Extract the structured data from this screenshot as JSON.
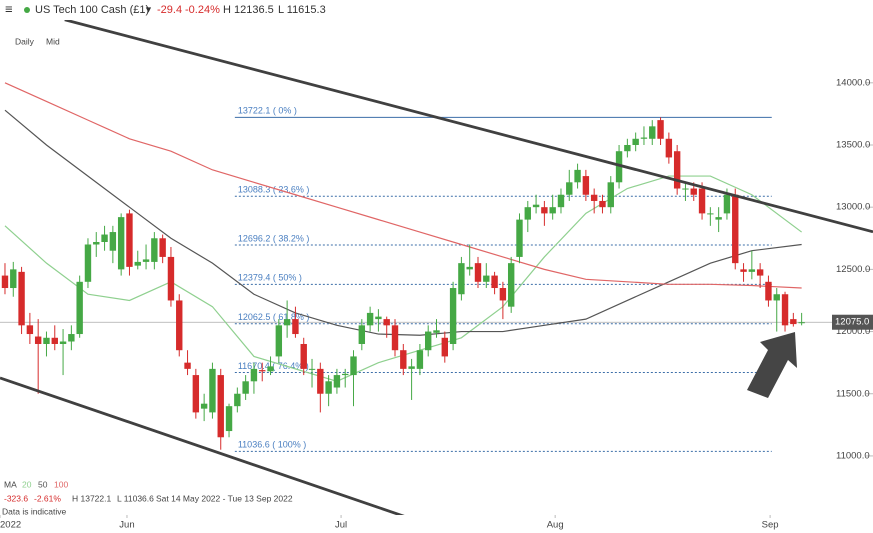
{
  "header": {
    "instrument": "US Tech 100 Cash (£1)",
    "change": "-29.4",
    "change_pct": "-0.24%",
    "high": "H 12136.5",
    "low": "L 11615.3",
    "interval": "Daily",
    "price_type": "Mid"
  },
  "footer": {
    "ma_label": "MA",
    "change": "-323.6",
    "change_pct": "-2.61%",
    "high": "H 13722.1",
    "low": "L 11036.6",
    "range": "Sat 14 May 2022 - Tue 13 Sep 2022",
    "note": "Data is indicative"
  },
  "chart_data": {
    "type": "candlestick",
    "xlim": [
      -0.6,
      104.6
    ],
    "ylim": [
      10525,
      14505
    ],
    "xticks": [
      {
        "value": -0.6,
        "label": "2022"
      },
      {
        "value": 14.7,
        "label": "Jun"
      },
      {
        "value": 40.5,
        "label": "Jul"
      },
      {
        "value": 66.3,
        "label": "Aug"
      },
      {
        "value": 92.2,
        "label": "Sep"
      }
    ],
    "yticks": [
      {
        "value": 11000,
        "label": "11000.0"
      },
      {
        "value": 11500,
        "label": "11500.0"
      },
      {
        "value": 12000,
        "label": "12000.0"
      },
      {
        "value": 12500,
        "label": "12500.0"
      },
      {
        "value": 13000,
        "label": "13000.0"
      },
      {
        "value": 13500,
        "label": "13500.0"
      },
      {
        "value": 14000,
        "label": "14000.0"
      }
    ],
    "up_color": "#45a845",
    "down_color": "#d62b2b",
    "candles": {
      "open": [
        12450,
        12350,
        12480,
        12050,
        11960,
        11900,
        11950,
        11900,
        11920,
        11980,
        12400,
        12700,
        12720,
        12650,
        12500,
        12950,
        12530,
        12560,
        12560,
        12750,
        12600,
        12250,
        11750,
        11650,
        11380,
        11350,
        11650,
        11200,
        11400,
        11500,
        11600,
        11690,
        11680,
        11800,
        12050,
        12100,
        11900,
        11700,
        11700,
        11500,
        11550,
        11650,
        11650,
        11900,
        12050,
        12100,
        12100,
        12050,
        11850,
        11700,
        11700,
        11850,
        11990,
        11950,
        11900,
        12300,
        12500,
        12550,
        12400,
        12450,
        12350,
        12200,
        12600,
        12900,
        13000,
        13000,
        12950,
        13000,
        13100,
        13200,
        13250,
        13100,
        13050,
        13000,
        13200,
        13450,
        13500,
        13550,
        13550,
        13700,
        13550,
        13450,
        13150,
        13150,
        13150,
        12950,
        12900,
        12950,
        13100,
        12500,
        12480,
        12500,
        12400,
        12250,
        12300,
        12100,
        12070
      ],
      "high": [
        12550,
        12560,
        12520,
        12150,
        12100,
        12000,
        12050,
        12020,
        12050,
        12450,
        12750,
        12800,
        12850,
        12850,
        12950,
        12980,
        12650,
        12700,
        12800,
        12780,
        12680,
        12300,
        11850,
        11700,
        11500,
        11750,
        11700,
        11420,
        11550,
        11650,
        11750,
        11750,
        11800,
        12100,
        12250,
        12200,
        11950,
        11780,
        11750,
        11650,
        11700,
        11700,
        11850,
        12100,
        12200,
        12180,
        12120,
        12100,
        11900,
        11780,
        11900,
        12050,
        12100,
        12000,
        12400,
        12600,
        12700,
        12600,
        12550,
        12480,
        12400,
        12600,
        12950,
        13050,
        13100,
        13050,
        13100,
        13150,
        13300,
        13350,
        13300,
        13150,
        13100,
        13250,
        13500,
        13550,
        13600,
        13650,
        13700,
        13722,
        13600,
        13500,
        13200,
        13200,
        13200,
        13000,
        13000,
        13150,
        13150,
        12550,
        12650,
        12550,
        12450,
        12350,
        12320,
        12150,
        12150
      ],
      "low": [
        12300,
        12280,
        11980,
        11900,
        11500,
        11800,
        11850,
        11650,
        11850,
        11950,
        12350,
        12600,
        12650,
        12550,
        12450,
        12450,
        12500,
        12500,
        12500,
        12550,
        12200,
        11800,
        11650,
        11300,
        11280,
        11300,
        11050,
        11150,
        11350,
        11450,
        11500,
        11600,
        11650,
        11750,
        11950,
        11950,
        11650,
        11550,
        11350,
        11400,
        11500,
        11550,
        11400,
        11850,
        12000,
        12000,
        11950,
        11800,
        11650,
        11450,
        11650,
        11800,
        11950,
        11750,
        11850,
        12250,
        12450,
        12350,
        12350,
        12300,
        12100,
        12150,
        12550,
        12800,
        12950,
        12850,
        12900,
        12950,
        13050,
        13150,
        13050,
        12950,
        12950,
        12950,
        13150,
        13400,
        13450,
        13500,
        13500,
        13500,
        13350,
        13100,
        13050,
        13050,
        12900,
        12850,
        12800,
        12900,
        12500,
        12400,
        12420,
        12350,
        12200,
        12000,
        12000,
        12040,
        12050
      ],
      "close": [
        12350,
        12500,
        12050,
        11980,
        11900,
        11950,
        11900,
        11920,
        11980,
        12400,
        12700,
        12720,
        12780,
        12800,
        12920,
        12520,
        12560,
        12580,
        12750,
        12600,
        12250,
        11850,
        11700,
        11350,
        11420,
        11700,
        11150,
        11400,
        11500,
        11600,
        11700,
        11680,
        11720,
        12050,
        12100,
        11980,
        11700,
        11700,
        11500,
        11600,
        11650,
        11660,
        11800,
        12050,
        12150,
        12120,
        12050,
        11850,
        11700,
        11720,
        11850,
        12000,
        12010,
        11800,
        12350,
        12550,
        12520,
        12400,
        12450,
        12350,
        12250,
        12550,
        12900,
        13000,
        13020,
        12950,
        13000,
        13100,
        13200,
        13300,
        13100,
        13050,
        13000,
        13200,
        13450,
        13500,
        13550,
        13560,
        13650,
        13550,
        13400,
        13150,
        13150,
        13100,
        12950,
        12950,
        12920,
        13100,
        12550,
        12480,
        12500,
        12450,
        12250,
        12300,
        12050,
        12060,
        12075
      ]
    },
    "series": [
      {
        "name": "20",
        "color": "#8fd08f",
        "x": [
          0,
          5,
          10,
          15,
          20,
          25,
          30,
          35,
          40,
          45,
          50,
          55,
          60,
          65,
          70,
          75,
          80,
          85,
          90,
          96
        ],
        "values": [
          12850,
          12550,
          12300,
          12250,
          12400,
          12200,
          11800,
          11700,
          11600,
          11750,
          11850,
          11950,
          12200,
          12600,
          12950,
          13150,
          13250,
          13250,
          13100,
          12800
        ]
      },
      {
        "name": "50",
        "color": "#555555",
        "x": [
          0,
          5,
          10,
          15,
          20,
          25,
          30,
          35,
          40,
          45,
          50,
          55,
          60,
          65,
          70,
          75,
          80,
          85,
          90,
          96
        ],
        "values": [
          13780,
          13500,
          13250,
          13000,
          12750,
          12550,
          12300,
          12150,
          12050,
          11980,
          11970,
          12000,
          12000,
          12050,
          12100,
          12250,
          12400,
          12550,
          12650,
          12700
        ]
      },
      {
        "name": "100",
        "color": "#e06666",
        "x": [
          0,
          5,
          10,
          15,
          20,
          25,
          30,
          35,
          40,
          45,
          50,
          55,
          60,
          65,
          70,
          75,
          80,
          85,
          90,
          96
        ],
        "values": [
          14000,
          13850,
          13700,
          13550,
          13450,
          13300,
          13200,
          13100,
          13000,
          12900,
          12800,
          12700,
          12600,
          12500,
          12420,
          12400,
          12380,
          12380,
          12370,
          12350
        ]
      }
    ],
    "fib_span": [
      27.7,
      92.4
    ],
    "fib_levels": [
      {
        "value": 13722.1,
        "label": "13722.1 ( 0% )"
      },
      {
        "value": 13088.3,
        "label": "13088.3 ( 23.6% )"
      },
      {
        "value": 12696.2,
        "label": "12696.2 ( 38.2% )"
      },
      {
        "value": 12379.4,
        "label": "12379.4 ( 50% )"
      },
      {
        "value": 12062.5,
        "label": "12062.5 ( 61.8% )"
      },
      {
        "value": 11670.4,
        "label": "11670.4 ( 76.4% )"
      },
      {
        "value": 11036.6,
        "label": "11036.6 ( 100% )"
      }
    ],
    "trendlines": [
      {
        "x": [
          7.2,
          104.6
        ],
        "values": [
          14507,
          12802
        ]
      },
      {
        "x": [
          -0.6,
          49.4
        ],
        "values": [
          11627,
          10485
        ]
      }
    ],
    "last_price": {
      "value": 12075,
      "label": "12075.0"
    }
  }
}
